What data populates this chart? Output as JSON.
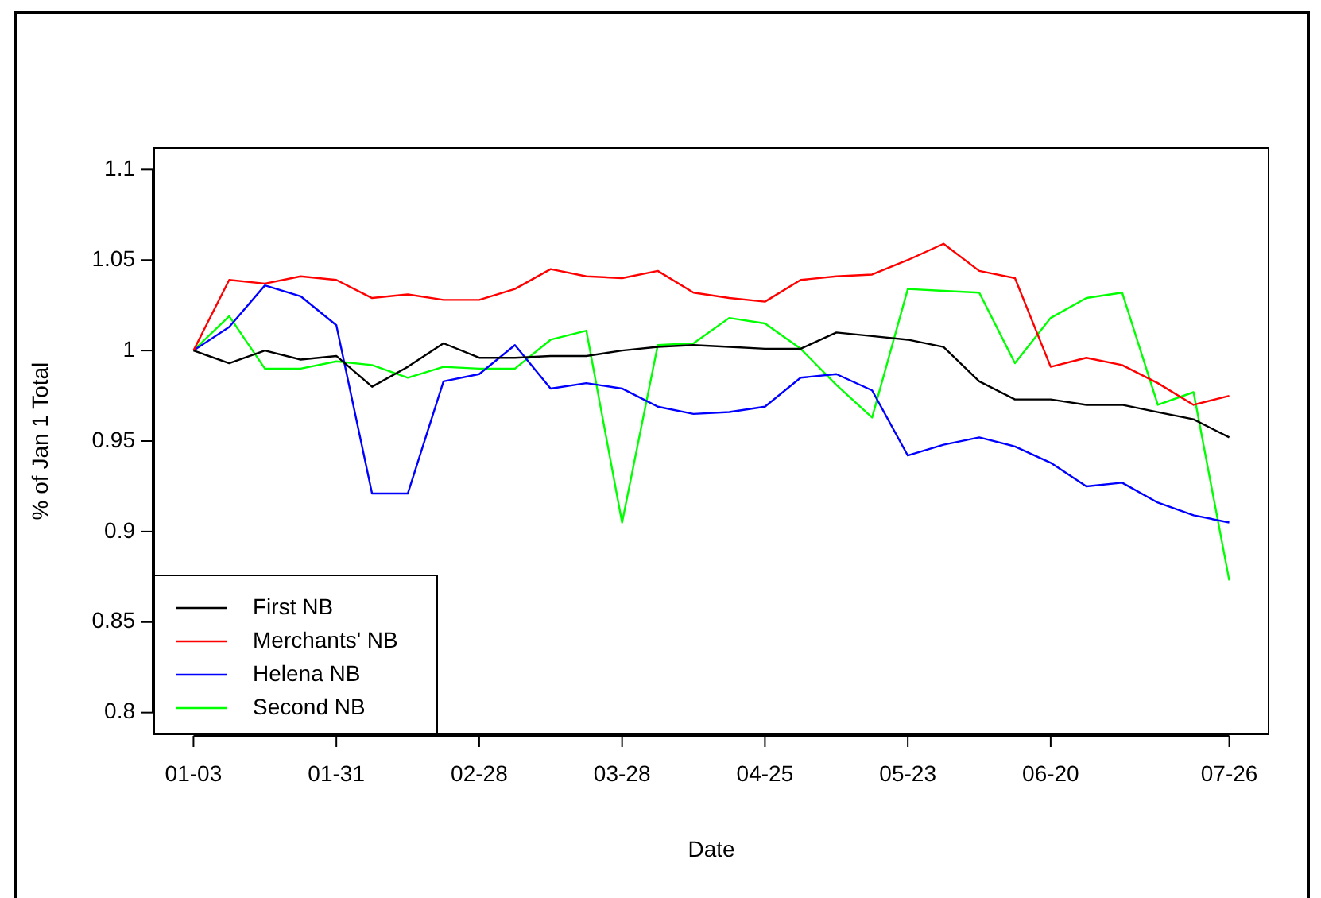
{
  "chart_data": {
    "type": "line",
    "xlabel": "Date",
    "ylabel": "% of Jan 1 Total",
    "categories": [
      "01-03",
      null,
      null,
      null,
      "01-31",
      null,
      null,
      null,
      "02-28",
      null,
      null,
      null,
      "03-28",
      null,
      null,
      null,
      "04-25",
      null,
      null,
      null,
      "05-23",
      null,
      null,
      null,
      "06-20",
      null,
      null,
      null,
      null,
      "07-26"
    ],
    "series": [
      {
        "name": "First NB",
        "color": "#000000",
        "values": [
          1.0,
          0.993,
          1.0,
          0.995,
          0.997,
          0.98,
          0.991,
          1.004,
          0.996,
          0.996,
          0.997,
          0.997,
          1.0,
          1.002,
          1.003,
          1.002,
          1.001,
          1.001,
          1.01,
          1.008,
          1.006,
          1.002,
          0.983,
          0.973,
          0.973,
          0.97,
          0.97,
          0.966,
          0.962,
          0.952
        ]
      },
      {
        "name": "Merchants' NB",
        "color": "#ff0000",
        "values": [
          1.0,
          1.039,
          1.037,
          1.041,
          1.039,
          1.029,
          1.031,
          1.028,
          1.028,
          1.034,
          1.045,
          1.041,
          1.04,
          1.044,
          1.032,
          1.029,
          1.027,
          1.039,
          1.041,
          1.042,
          1.05,
          1.059,
          1.044,
          1.04,
          0.991,
          0.996,
          0.992,
          0.982,
          0.97,
          0.975
        ]
      },
      {
        "name": "Helena NB",
        "color": "#0000ff",
        "values": [
          1.0,
          1.013,
          1.036,
          1.03,
          1.014,
          0.921,
          0.921,
          0.983,
          0.987,
          1.003,
          0.979,
          0.982,
          0.979,
          0.969,
          0.965,
          0.966,
          0.969,
          0.985,
          0.987,
          0.978,
          0.942,
          0.948,
          0.952,
          0.947,
          0.938,
          0.925,
          0.927,
          0.916,
          0.909,
          0.905
        ]
      },
      {
        "name": "Second NB",
        "color": "#00ff00",
        "values": [
          1.0,
          1.019,
          0.99,
          0.99,
          0.994,
          0.992,
          0.985,
          0.991,
          0.99,
          0.99,
          1.006,
          1.011,
          0.905,
          1.003,
          1.004,
          1.018,
          1.015,
          1.001,
          0.981,
          0.963,
          1.034,
          1.033,
          1.032,
          0.993,
          1.018,
          1.029,
          1.032,
          0.97,
          0.977,
          0.873
        ]
      }
    ],
    "ylim": [
      0.788,
      1.112
    ],
    "yticks": [
      0.8,
      0.85,
      0.9,
      0.95,
      1,
      1.05,
      1.1
    ],
    "grid": false,
    "legend": "bottom left",
    "marker": "none",
    "line_style": "solid"
  }
}
